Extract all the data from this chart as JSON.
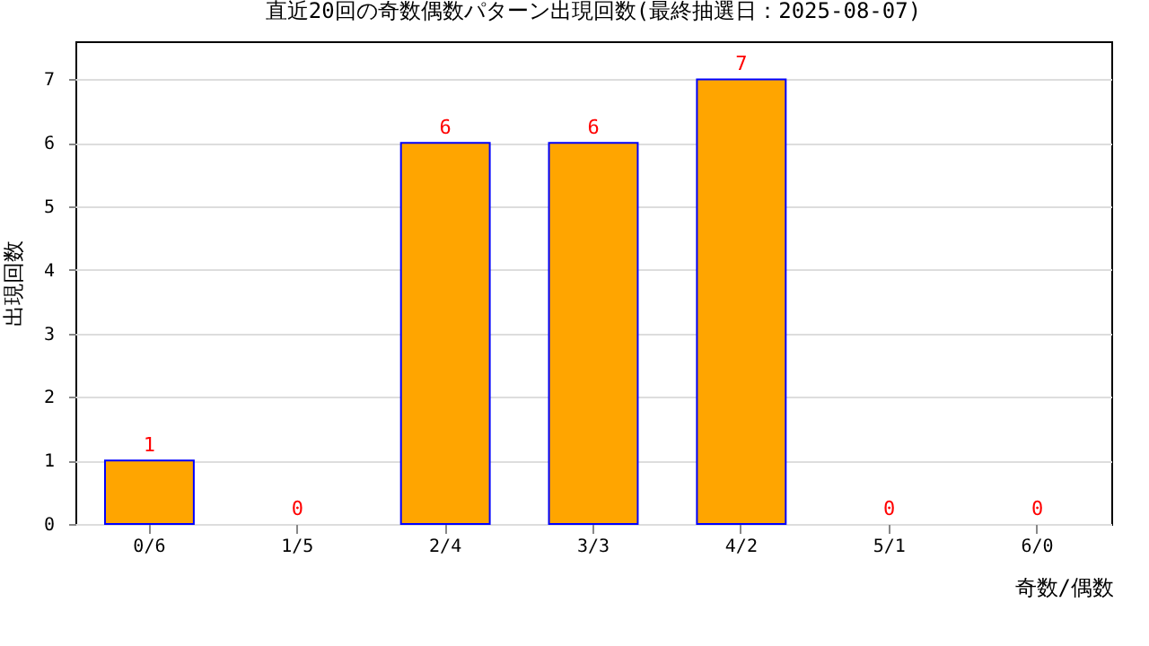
{
  "chart_data": {
    "type": "bar",
    "title": "直近20回の奇数偶数パターン出現回数(最終抽選日：2025-08-07)",
    "categories": [
      "0/6",
      "1/5",
      "2/4",
      "3/3",
      "4/2",
      "5/1",
      "6/0"
    ],
    "values": [
      1,
      0,
      6,
      6,
      7,
      0,
      0
    ],
    "color": "#ffa500",
    "xlabel": "奇数/偶数",
    "ylabel": "出現回数",
    "ylim": [
      0,
      7.6
    ],
    "yticks": [
      0,
      1,
      2,
      3,
      4,
      5,
      6,
      7
    ],
    "grid": "y",
    "data_labels": true
  }
}
